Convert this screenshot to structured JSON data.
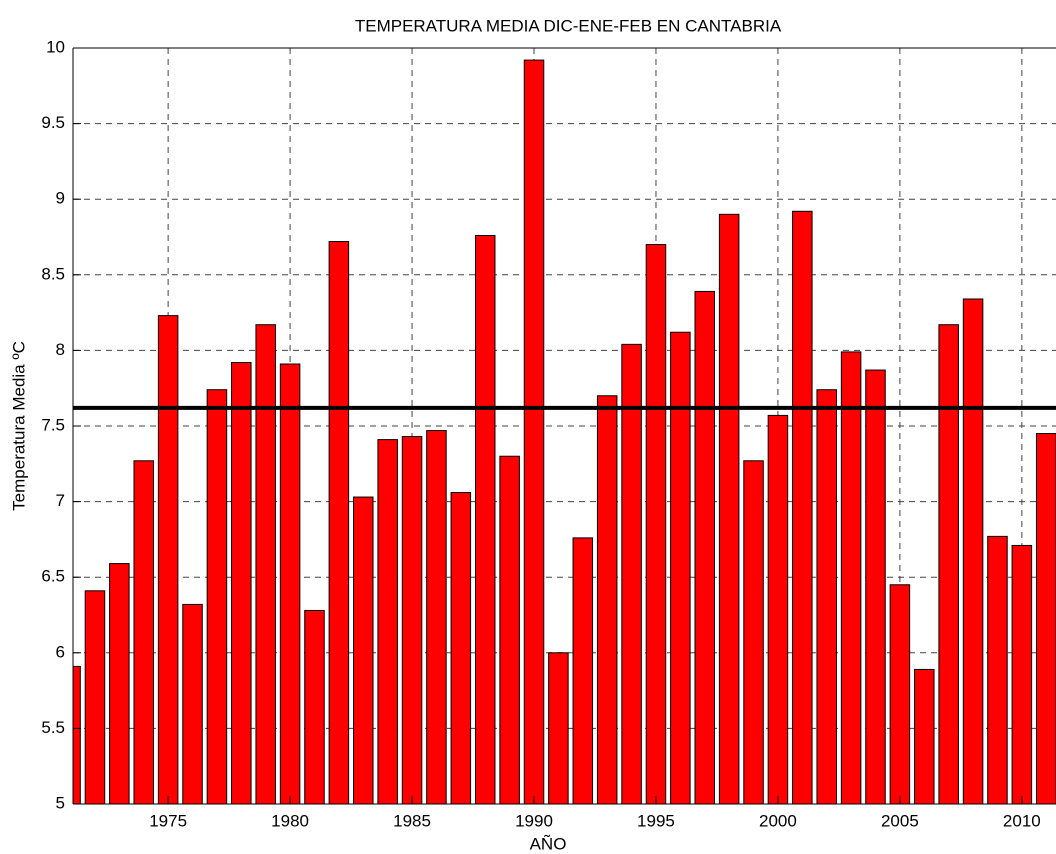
{
  "chart_data": {
    "type": "bar",
    "title": "TEMPERATURA MEDIA DIC-ENE-FEB EN CANTABRIA",
    "x_label": "AÑO",
    "y_label": "Temperatura Media ºC",
    "x": [
      1971,
      1972,
      1973,
      1974,
      1975,
      1976,
      1977,
      1978,
      1979,
      1980,
      1981,
      1982,
      1983,
      1984,
      1985,
      1986,
      1987,
      1988,
      1989,
      1990,
      1991,
      1992,
      1993,
      1994,
      1995,
      1996,
      1997,
      1998,
      1999,
      2000,
      2001,
      2002,
      2003,
      2004,
      2005,
      2006,
      2007,
      2008,
      2009,
      2010,
      2011
    ],
    "values": [
      5.91,
      6.41,
      6.59,
      7.27,
      8.23,
      6.32,
      7.74,
      7.92,
      8.17,
      7.91,
      6.28,
      8.72,
      7.03,
      7.41,
      7.43,
      7.47,
      7.06,
      8.76,
      7.3,
      9.92,
      6.0,
      6.76,
      7.7,
      8.04,
      8.7,
      8.12,
      8.39,
      8.9,
      7.27,
      7.57,
      8.92,
      7.74,
      7.99,
      7.87,
      6.45,
      5.89,
      8.17,
      8.34,
      6.77,
      6.71,
      7.45
    ],
    "color": "#ff0000",
    "reference_line": 7.62,
    "xlim": [
      1971.1,
      2011.4
    ],
    "xticks": [
      1975,
      1980,
      1985,
      1990,
      1995,
      2000,
      2005,
      2010
    ],
    "ylim": [
      5,
      10
    ],
    "yticks": [
      5,
      5.5,
      6,
      6.5,
      7,
      7.5,
      8,
      8.5,
      9,
      9.5,
      10
    ],
    "grid": true
  }
}
